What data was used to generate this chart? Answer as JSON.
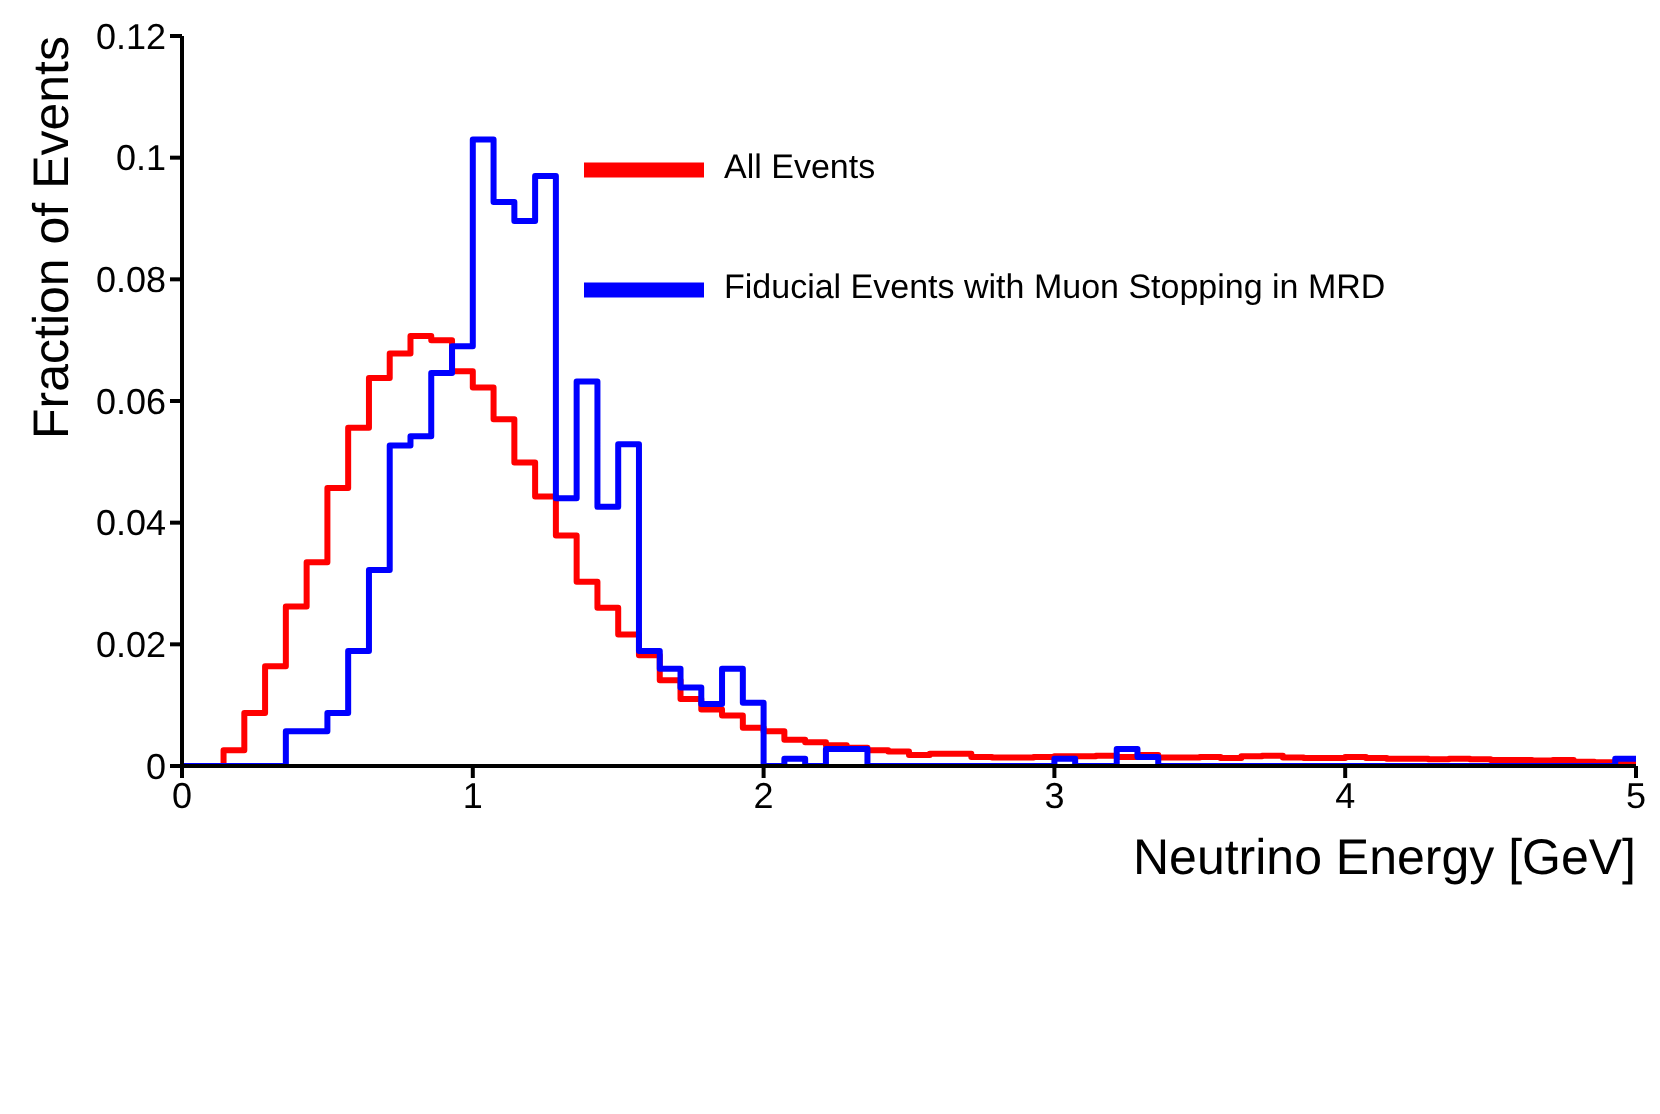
{
  "chart_data": {
    "type": "histogram",
    "xlabel": "Neutrino Energy [GeV]",
    "ylabel": "Fraction of Events",
    "bins": [
      0,
      0.0714,
      0.1429,
      0.2143,
      0.2857,
      0.3571,
      0.4286,
      0.5,
      0.5714,
      0.6429,
      0.7143,
      0.7857,
      0.8571,
      0.9286,
      1,
      1.0714,
      1.1429,
      1.2143,
      1.2857,
      1.3571,
      1.4286,
      1.5,
      1.5714,
      1.6429,
      1.7143,
      1.7857,
      1.8571,
      1.9286,
      2,
      2.0714,
      2.1429,
      2.2143,
      2.2857,
      2.3571,
      2.4286,
      2.5,
      2.5714,
      2.6429,
      2.7143,
      2.7857,
      2.8571,
      2.9286,
      3,
      3.0714,
      3.1429,
      3.2143,
      3.2857,
      3.3571,
      3.4286,
      3.5,
      3.5714,
      3.6429,
      3.7143,
      3.7857,
      3.8571,
      3.9286,
      4,
      4.0714,
      4.1429,
      4.2143,
      4.2857,
      4.3571,
      4.4286,
      4.5,
      4.5714,
      4.6429,
      4.7143,
      4.7857,
      4.8571,
      4.9286,
      5
    ],
    "series": [
      {
        "name": "All Events",
        "color": "#ff0000",
        "values": [
          0,
          0,
          0.0026,
          0.0087,
          0.0164,
          0.0262,
          0.0335,
          0.0457,
          0.0556,
          0.0638,
          0.0678,
          0.0707,
          0.07,
          0.0649,
          0.0622,
          0.057,
          0.0499,
          0.0443,
          0.0379,
          0.0303,
          0.026,
          0.0216,
          0.0182,
          0.0141,
          0.011,
          0.0093,
          0.0083,
          0.0063,
          0.0057,
          0.0043,
          0.0039,
          0.0034,
          0.003,
          0.0026,
          0.0024,
          0.0018,
          0.002,
          0.002,
          0.0015,
          0.0014,
          0.0014,
          0.0015,
          0.0016,
          0.0016,
          0.0017,
          0.0015,
          0.0018,
          0.0014,
          0.0014,
          0.0015,
          0.0013,
          0.0016,
          0.0017,
          0.0014,
          0.0013,
          0.0013,
          0.0015,
          0.0013,
          0.0012,
          0.0012,
          0.0011,
          0.0012,
          0.0011,
          0.001,
          0.001,
          0.0009,
          0.001,
          0.0007,
          0.0006,
          0.0006
        ]
      },
      {
        "name": "Fiducial Events with Muon Stopping in MRD",
        "color": "#0000ff",
        "values": [
          0,
          0,
          0,
          0,
          0,
          0.0057,
          0.0057,
          0.0087,
          0.0189,
          0.0322,
          0.0527,
          0.0542,
          0.0646,
          0.069,
          0.103,
          0.0927,
          0.0896,
          0.097,
          0.044,
          0.0632,
          0.0426,
          0.0529,
          0.0189,
          0.016,
          0.0129,
          0.0102,
          0.016,
          0.0104,
          0,
          0.0012,
          0,
          0.0028,
          0.0028,
          0,
          0,
          0,
          0,
          0,
          0,
          0,
          0,
          0,
          0.0012,
          0,
          0,
          0.0028,
          0.0015,
          0,
          0,
          0,
          0,
          0,
          0,
          0,
          0,
          0,
          0,
          0,
          0,
          0,
          0,
          0,
          0,
          0,
          0,
          0,
          0,
          0,
          0,
          0.0012
        ]
      }
    ],
    "xlim": [
      0,
      5
    ],
    "xticks": [
      0,
      1,
      2,
      3,
      4,
      5
    ],
    "ylim": [
      0,
      0.12
    ],
    "yticks": [
      0,
      0.02,
      0.04,
      0.06,
      0.08,
      0.1,
      0.12
    ],
    "legend": "top right",
    "line_style": "solid",
    "marker": "none"
  }
}
